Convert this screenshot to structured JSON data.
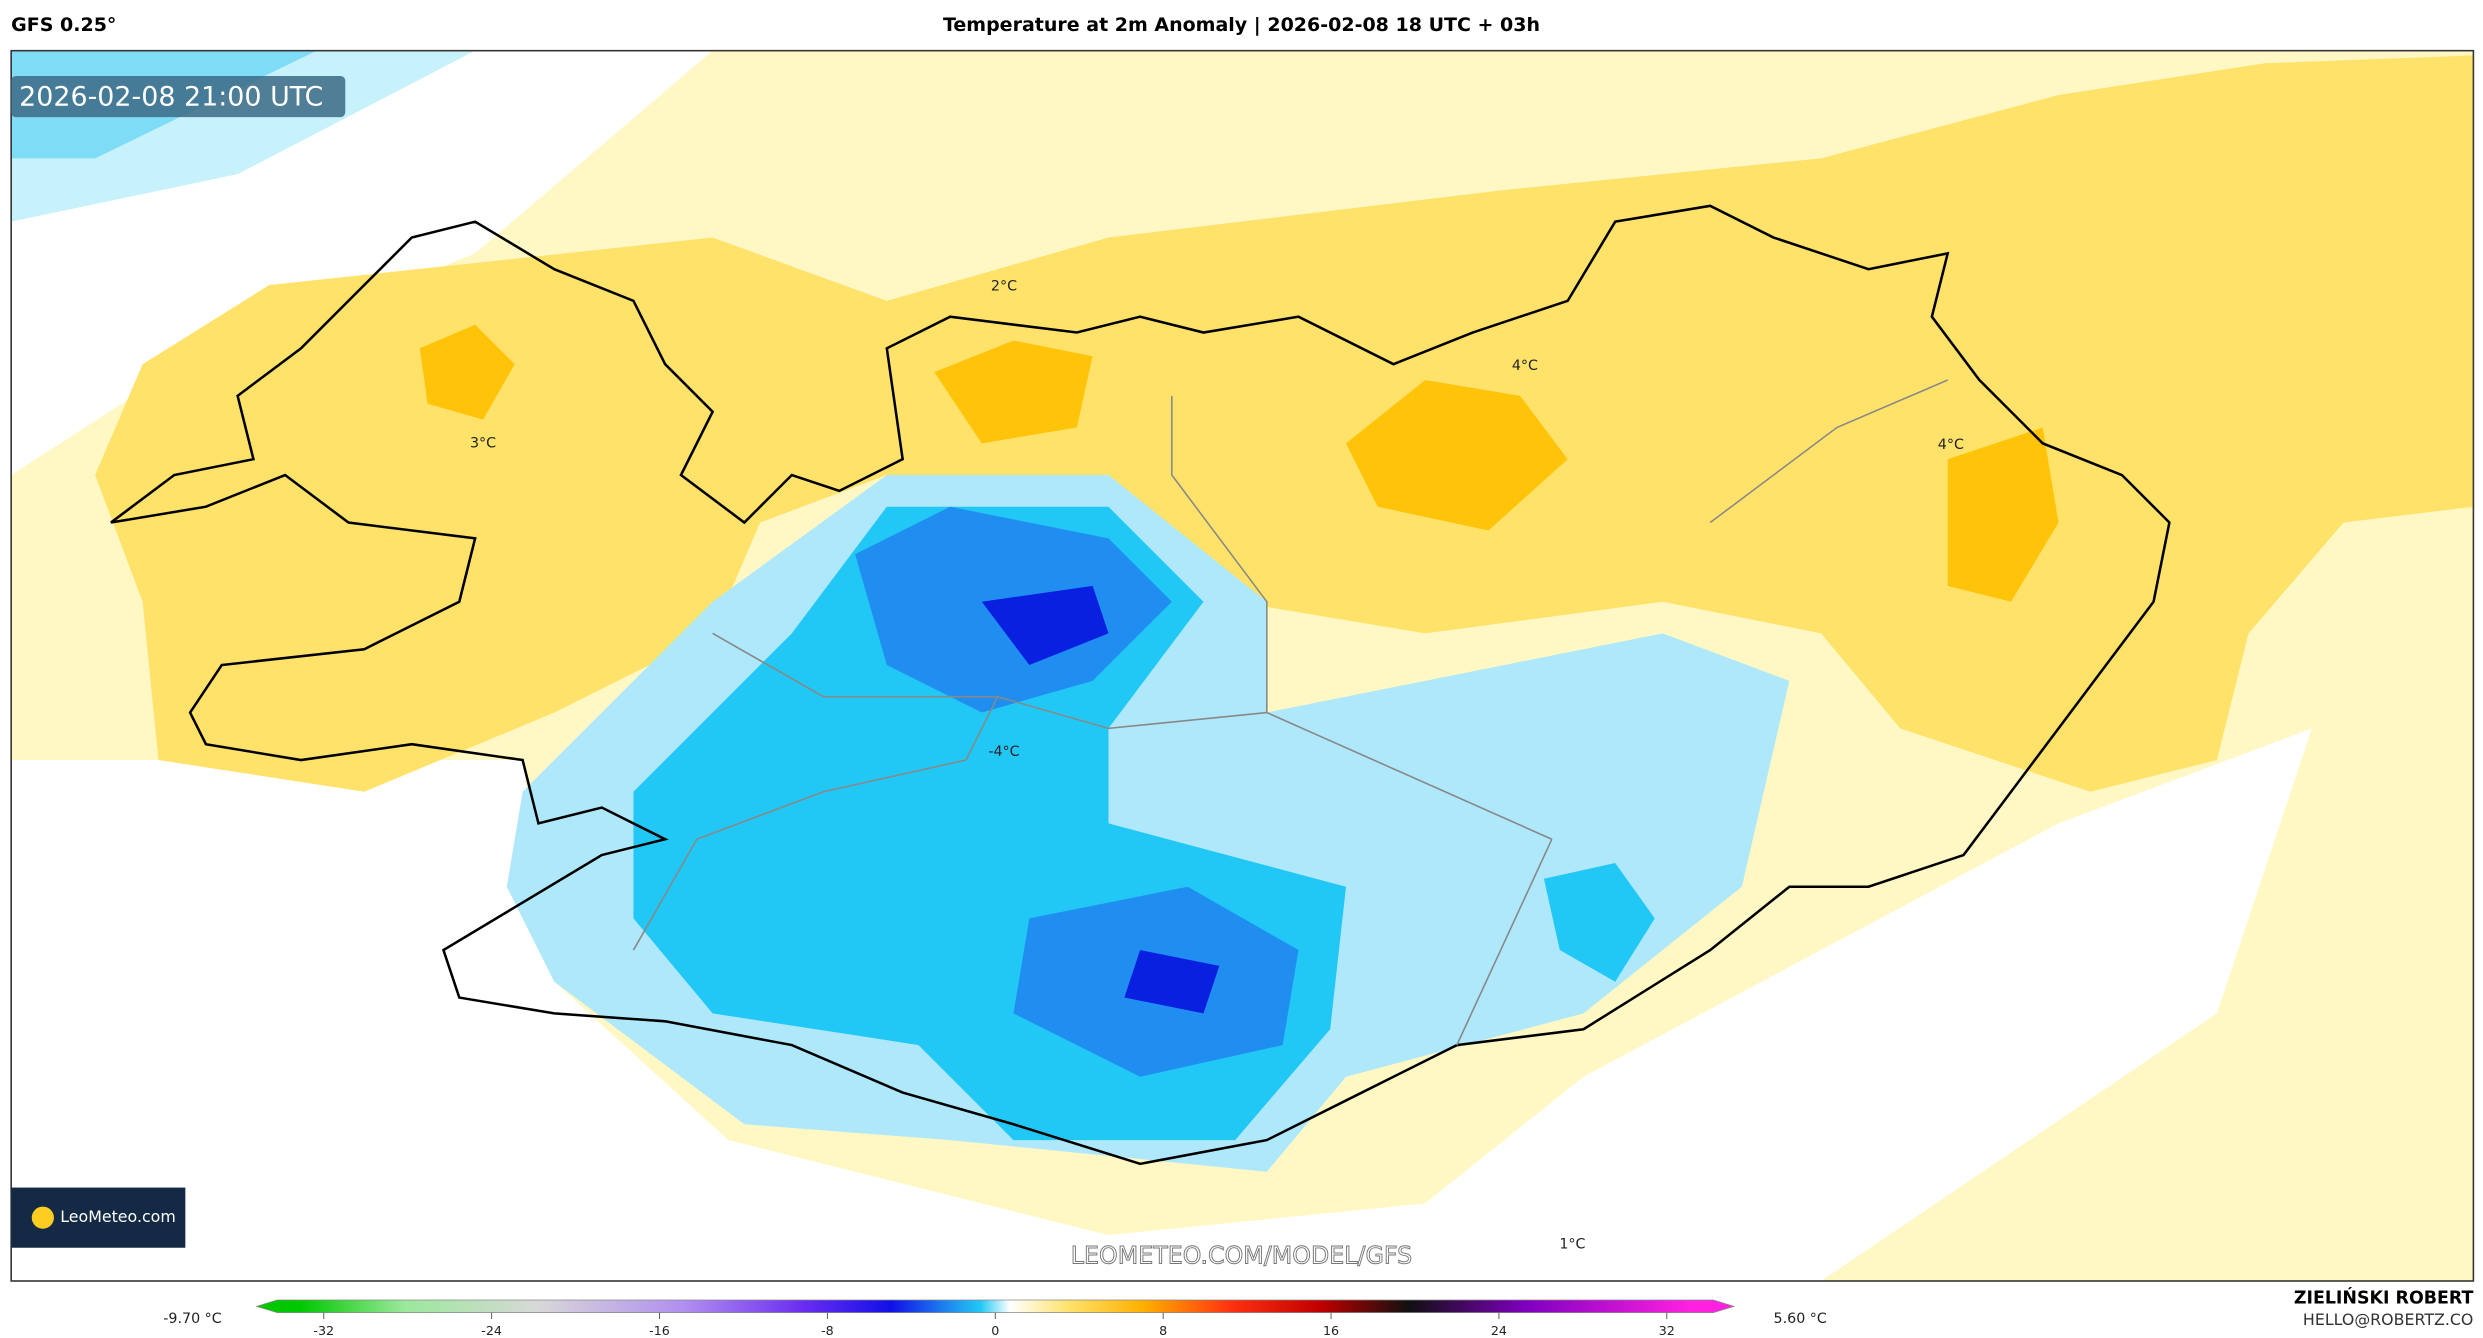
{
  "header": {
    "model": "GFS 0.25°",
    "title": "Temperature at 2m Anomaly | 2026-02-08 18 UTC + 03h"
  },
  "map": {
    "timestamp": "2026-02-08 21:00 UTC",
    "contour_labels": [
      "2°C",
      "3°C",
      "4°C",
      "4°C",
      "-4°C",
      "1°C"
    ],
    "logo": "LeoMeteo.com",
    "watermark": "LEOMETEO.COM/MODEL/GFS"
  },
  "colorbar": {
    "min_label": "-9.70 °C",
    "max_label": "5.60 °C",
    "range": [
      -35.2,
      35.2
    ],
    "ticks": [
      -32,
      -24,
      -16,
      -8,
      0,
      8,
      16,
      24,
      32
    ]
  },
  "footer": {
    "author": "ZIELIŃSKI ROBERT",
    "email": "HELLO@ROBERTZ.CO"
  }
}
